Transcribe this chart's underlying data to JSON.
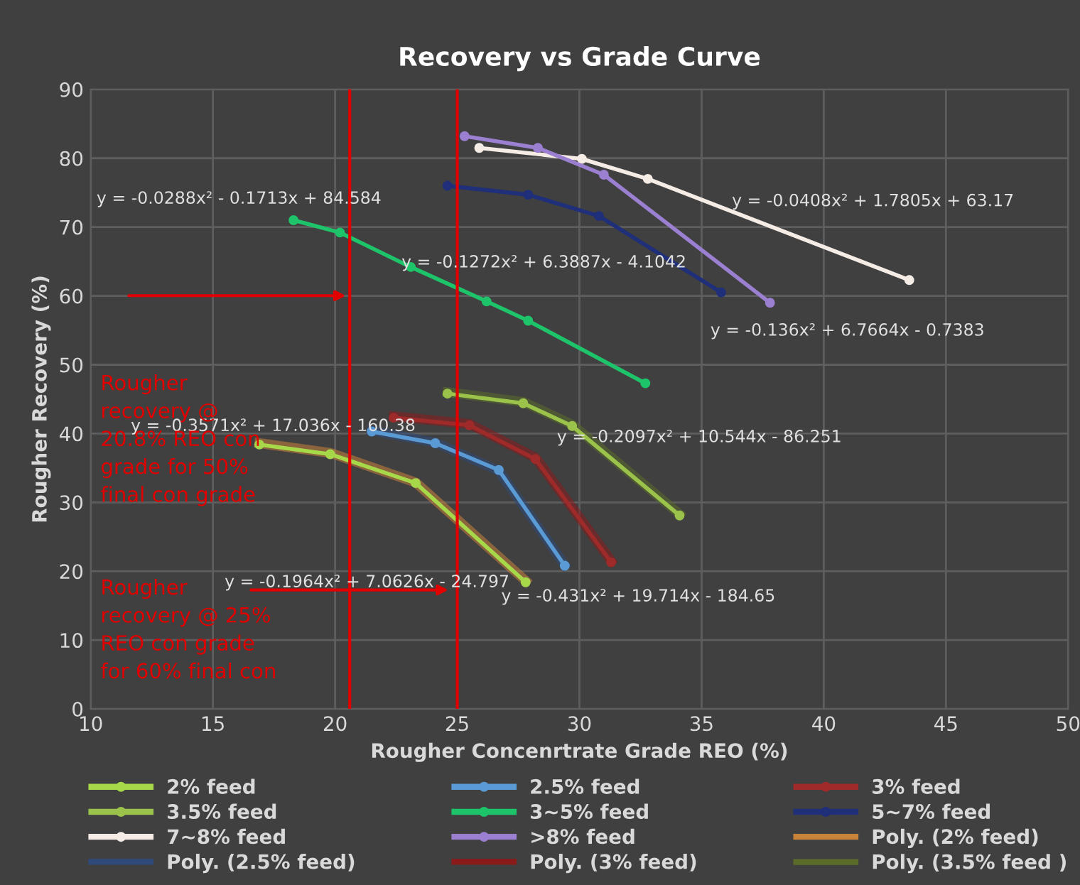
{
  "chart_data": {
    "type": "line",
    "title": "Recovery vs Grade Curve",
    "xlabel": "Rougher Concenrtrate Grade REO (%)",
    "ylabel": "Rougher Recovery (%)",
    "xlim": [
      10,
      50
    ],
    "xticks": [
      10,
      15,
      20,
      25,
      30,
      35,
      40,
      45,
      50
    ],
    "ylim": [
      0,
      90
    ],
    "yticks": [
      0,
      10,
      20,
      30,
      40,
      50,
      60,
      70,
      80,
      90
    ],
    "grid": true,
    "legend": "bottom",
    "marker": "circle",
    "line_style": "solid",
    "series": [
      {
        "name": "2% feed",
        "color": "#a6d84a",
        "x": [
          16.9,
          19.8,
          23.3,
          27.8
        ],
        "values": [
          38.4,
          37.0,
          32.8,
          18.4
        ]
      },
      {
        "name": "2.5% feed",
        "color": "#5b9bd5",
        "x": [
          21.5,
          24.1,
          26.7,
          29.4
        ],
        "values": [
          40.3,
          38.6,
          34.7,
          20.8
        ]
      },
      {
        "name": "3% feed",
        "color": "#9e2a2a",
        "x": [
          22.4,
          25.5,
          28.2,
          31.3
        ],
        "values": [
          42.3,
          41.2,
          36.3,
          21.3
        ]
      },
      {
        "name": "3.5% feed",
        "color": "#9bc24a",
        "x": [
          24.6,
          27.7,
          29.7,
          34.1
        ],
        "values": [
          45.8,
          44.4,
          41.1,
          28.1
        ]
      },
      {
        "name": "3~5% feed",
        "color": "#1ec46a",
        "x": [
          18.3,
          20.2,
          23.1,
          26.2,
          27.9,
          32.7
        ],
        "values": [
          71.0,
          69.2,
          64.2,
          59.2,
          56.4,
          47.3
        ]
      },
      {
        "name": "5~7% feed",
        "color": "#1f2f7a",
        "x": [
          24.6,
          27.9,
          30.8,
          35.8
        ],
        "values": [
          76.0,
          74.7,
          71.6,
          60.5
        ]
      },
      {
        "name": "7~8% feed",
        "color": "#f5ece6",
        "x": [
          25.9,
          30.1,
          32.8,
          43.5
        ],
        "values": [
          81.5,
          79.9,
          77.0,
          62.3
        ]
      },
      {
        "name": ">8% feed",
        "color": "#9b7fd0",
        "x": [
          25.3,
          28.3,
          31.0,
          37.8
        ],
        "values": [
          83.2,
          81.5,
          77.6,
          59.0
        ]
      },
      {
        "name": "Poly. (2% feed)",
        "color": "#c8823a",
        "marker": "none",
        "x": [
          16.9,
          19.8,
          23.3,
          27.8
        ],
        "values": [
          38.6,
          37.2,
          32.9,
          18.6
        ]
      },
      {
        "name": "Poly. (2.5% feed)",
        "color": "#2e4a7a",
        "marker": "none",
        "x": [
          21.5,
          24.1,
          26.7,
          29.4
        ],
        "values": [
          40.4,
          38.7,
          34.6,
          20.9
        ]
      },
      {
        "name": "Poly. (3% feed)",
        "color": "#8b1a1a",
        "marker": "none",
        "x": [
          22.4,
          25.5,
          28.2,
          31.3
        ],
        "values": [
          42.5,
          41.4,
          36.5,
          21.5
        ]
      },
      {
        "name": "Poly. (3.5% feed )",
        "color": "#5a6b2a",
        "marker": "none",
        "x": [
          24.6,
          27.7,
          29.7,
          34.1
        ],
        "values": [
          46.0,
          44.6,
          41.3,
          28.3
        ]
      }
    ],
    "ref_lines": [
      {
        "axis": "x",
        "value": 20.6,
        "color": "#e00000"
      },
      {
        "axis": "x",
        "value": 25,
        "color": "#e00000"
      }
    ],
    "annotations": [
      "y = -0.0288x² - 0.1713x + 84.584",
      "y = -0.1272x² + 6.3887x - 4.1042",
      "y = -0.0408x² + 1.7805x + 63.17",
      "y = -0.136x² + 6.7664x - 0.7383",
      "y = -0.3571x² + 17.036x - 160.38",
      "y = -0.2097x² + 10.544x - 86.251",
      "y = -0.1964x² + 7.0626x - 24.797",
      "y = -0.431x² + 19.714x - 184.65",
      "Rougher\nrecovery @\n20.8% REO con\ngrade for 50%\nfinal con grade",
      "Rougher\nrecovery @ 25%\nREO con grade\nfor 60% final con"
    ]
  }
}
